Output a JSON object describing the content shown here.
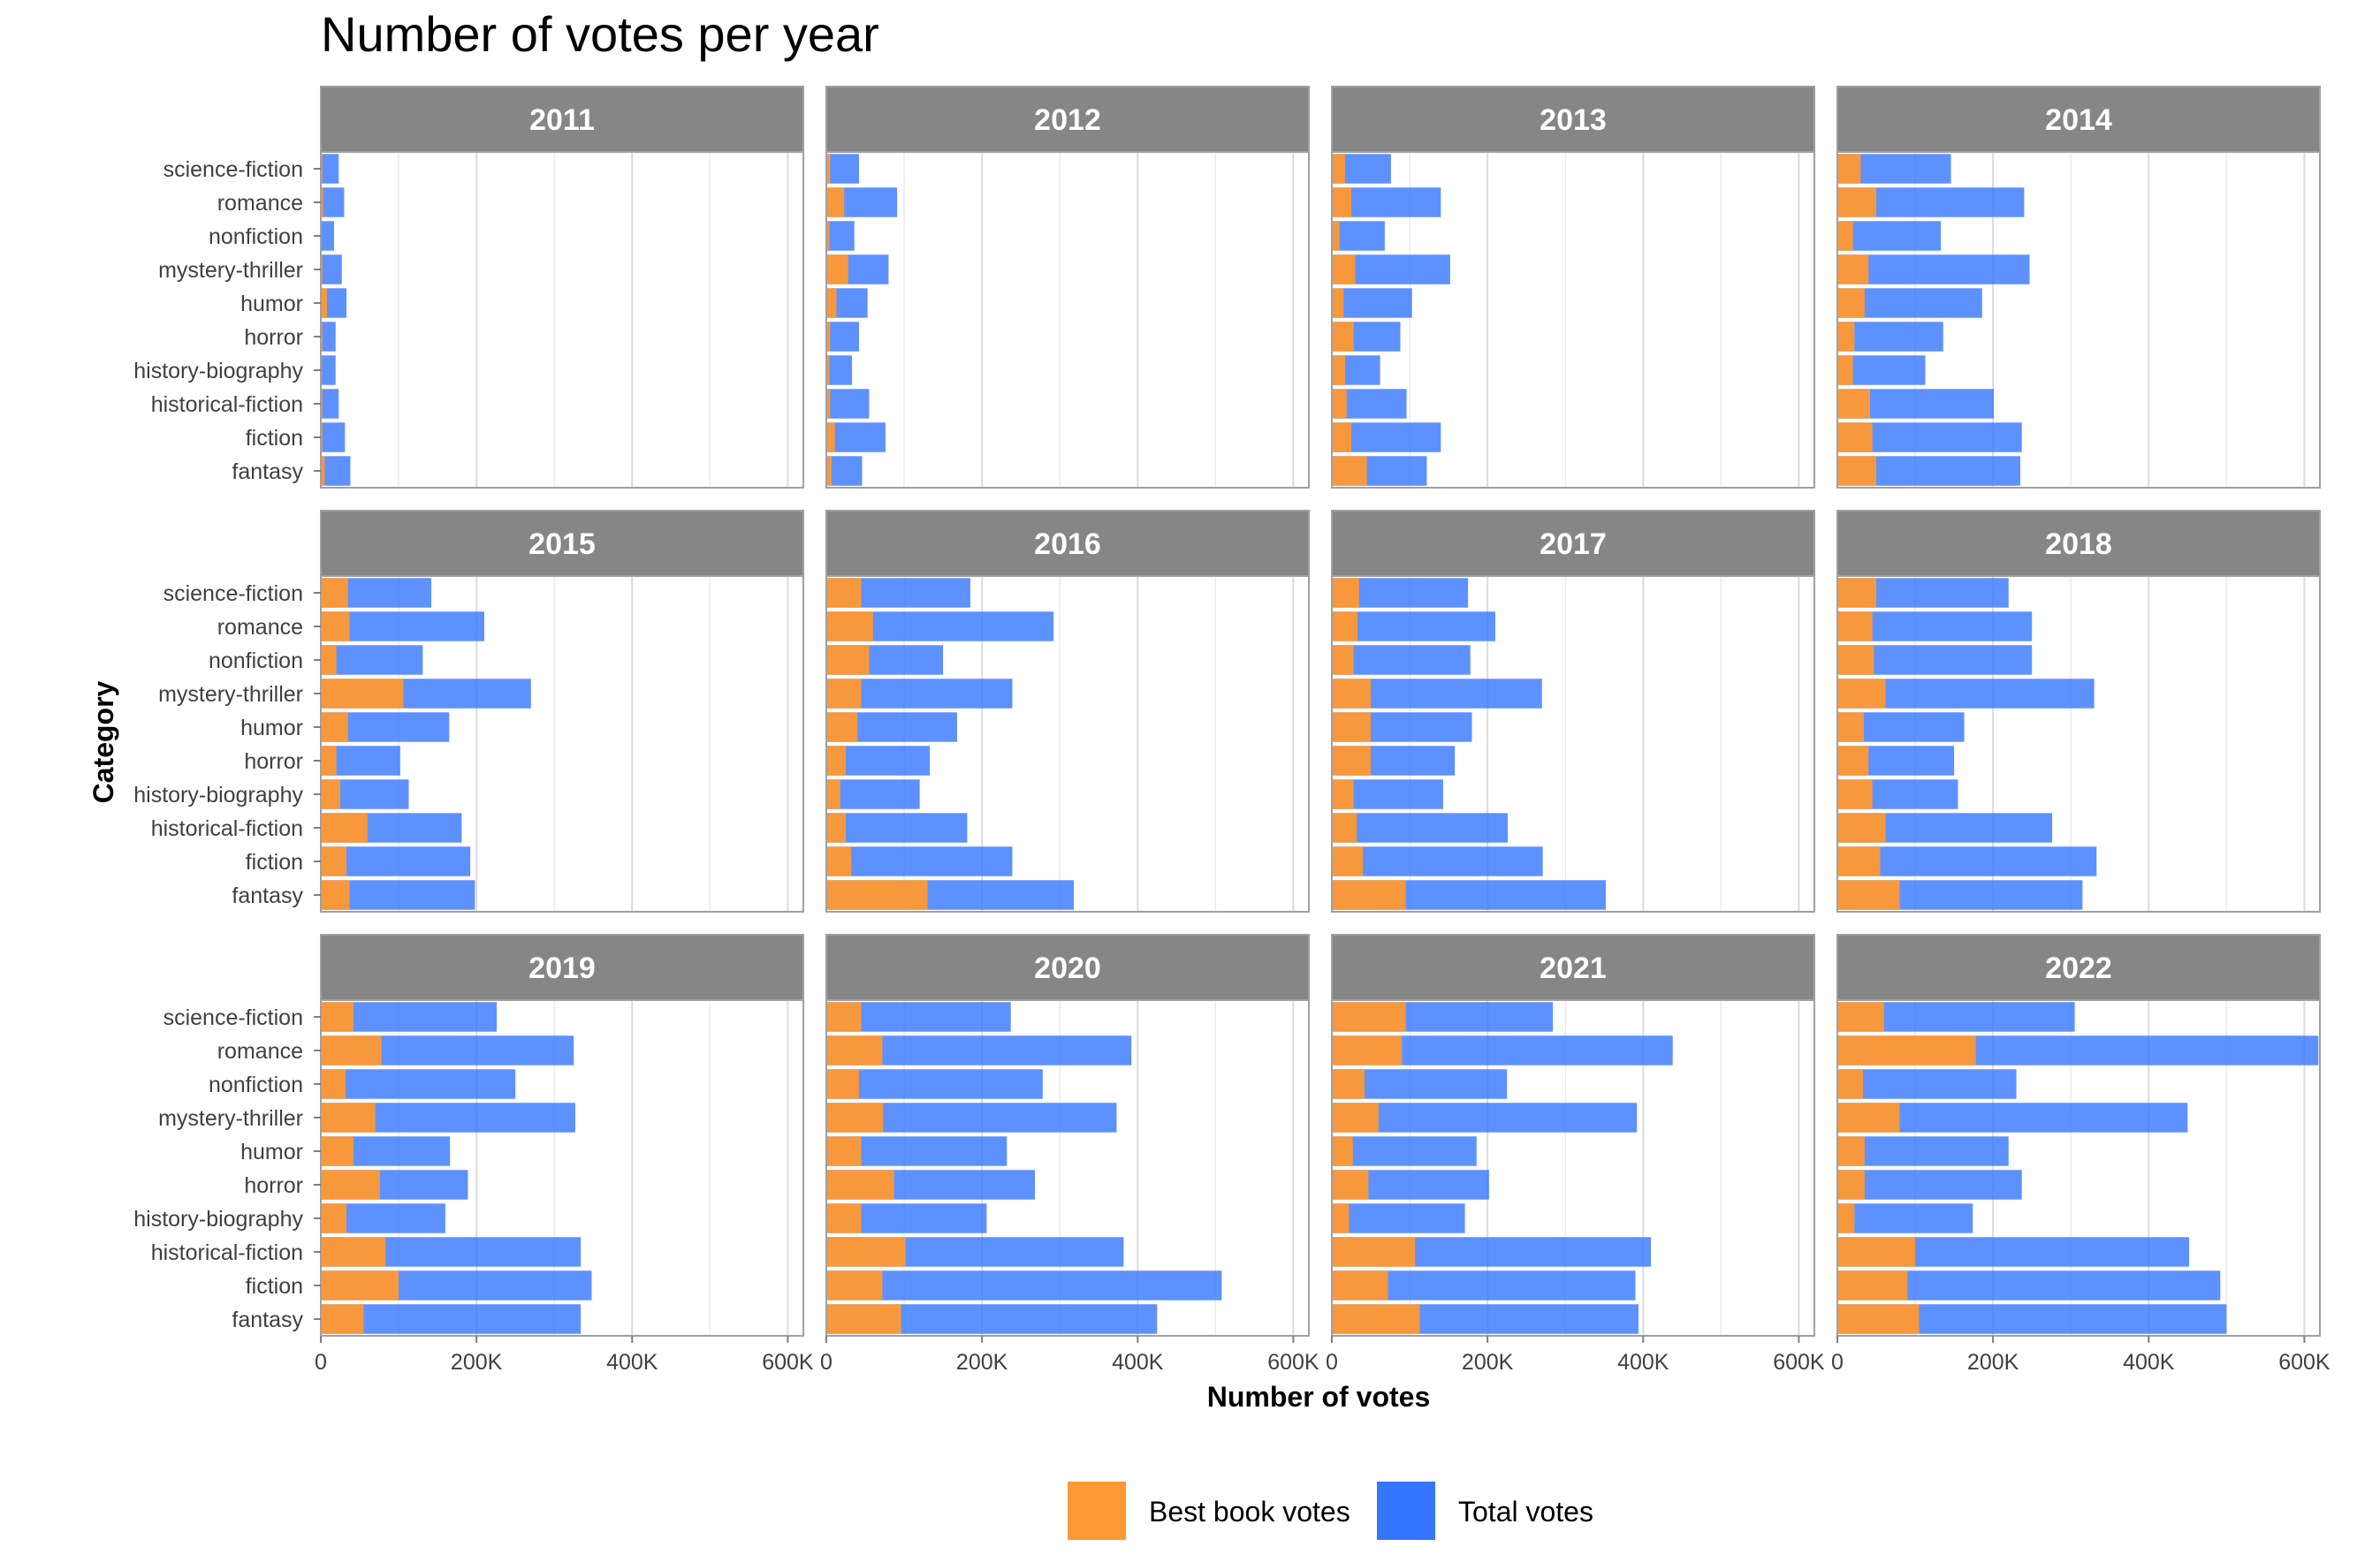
{
  "colors": {
    "best": "#FF9933",
    "total": "#3575FF",
    "strip_bg": "#868686",
    "strip_text": "#FFFFFF",
    "grid": "#DCDCDC",
    "panel_border": "#A0A0A0"
  },
  "chart_data": {
    "type": "bar",
    "orientation": "horizontal",
    "title": "Number of votes per year",
    "xlabel": "Number of votes",
    "ylabel": "Category",
    "xlim": [
      0,
      620000
    ],
    "x_ticks": [
      0,
      200000,
      400000,
      600000
    ],
    "x_tick_labels": [
      "0",
      "200K",
      "400K",
      "600K"
    ],
    "grid": true,
    "legend_position": "bottom",
    "legend": [
      {
        "key": "best",
        "label": "Best book votes"
      },
      {
        "key": "total",
        "label": "Total votes"
      }
    ],
    "categories": [
      "science-fiction",
      "romance",
      "nonfiction",
      "mystery-thriller",
      "humor",
      "horror",
      "history-biography",
      "historical-fiction",
      "fiction",
      "fantasy"
    ],
    "panels": [
      {
        "year": "2011",
        "best": [
          2000,
          3000,
          1000,
          2000,
          8000,
          2000,
          1500,
          2000,
          2000,
          5000
        ],
        "total": [
          23000,
          30000,
          17000,
          27000,
          33000,
          19000,
          19000,
          23000,
          31000,
          38000
        ]
      },
      {
        "year": "2012",
        "best": [
          5000,
          23000,
          4000,
          28000,
          13000,
          5000,
          4000,
          5000,
          11000,
          7000
        ],
        "total": [
          42000,
          91000,
          36000,
          80000,
          53000,
          42000,
          33000,
          55000,
          76000,
          46000
        ]
      },
      {
        "year": "2013",
        "best": [
          17000,
          25000,
          10000,
          30000,
          15000,
          28000,
          17000,
          19000,
          25000,
          45000
        ],
        "total": [
          76000,
          140000,
          68000,
          152000,
          103000,
          88000,
          62000,
          96000,
          140000,
          122000
        ]
      },
      {
        "year": "2014",
        "best": [
          30000,
          50000,
          20000,
          40000,
          35000,
          22000,
          20000,
          42000,
          45000,
          50000
        ],
        "total": [
          146000,
          240000,
          133000,
          247000,
          186000,
          136000,
          113000,
          201000,
          237000,
          235000
        ]
      },
      {
        "year": "2015",
        "best": [
          35000,
          37000,
          20000,
          106000,
          35000,
          20000,
          25000,
          60000,
          33000,
          37000
        ],
        "total": [
          142000,
          210000,
          131000,
          270000,
          165000,
          102000,
          113000,
          181000,
          192000,
          198000
        ]
      },
      {
        "year": "2016",
        "best": [
          45000,
          60000,
          55000,
          45000,
          40000,
          25000,
          18000,
          25000,
          32000,
          130000
        ],
        "total": [
          185000,
          292000,
          150000,
          239000,
          168000,
          133000,
          120000,
          181000,
          239000,
          318000
        ]
      },
      {
        "year": "2017",
        "best": [
          35000,
          33000,
          28000,
          50000,
          50000,
          50000,
          28000,
          32000,
          40000,
          95000
        ],
        "total": [
          175000,
          210000,
          178000,
          270000,
          180000,
          158000,
          143000,
          226000,
          271000,
          352000
        ]
      },
      {
        "year": "2018",
        "best": [
          50000,
          45000,
          47000,
          62000,
          34000,
          40000,
          45000,
          62000,
          55000,
          80000
        ],
        "total": [
          220000,
          250000,
          250000,
          330000,
          163000,
          150000,
          155000,
          276000,
          333000,
          315000
        ]
      },
      {
        "year": "2019",
        "best": [
          42000,
          78000,
          32000,
          70000,
          42000,
          76000,
          33000,
          83000,
          100000,
          55000
        ],
        "total": [
          226000,
          325000,
          250000,
          327000,
          166000,
          189000,
          160000,
          334000,
          348000,
          334000
        ]
      },
      {
        "year": "2020",
        "best": [
          45000,
          72000,
          42000,
          73000,
          45000,
          87000,
          45000,
          102000,
          72000,
          96000
        ],
        "total": [
          237000,
          392000,
          278000,
          373000,
          232000,
          268000,
          206000,
          382000,
          508000,
          425000
        ]
      },
      {
        "year": "2021",
        "best": [
          95000,
          90000,
          42000,
          60000,
          27000,
          47000,
          22000,
          107000,
          72000,
          113000
        ],
        "total": [
          284000,
          438000,
          225000,
          392000,
          186000,
          202000,
          171000,
          410000,
          390000,
          394000
        ]
      },
      {
        "year": "2022",
        "best": [
          60000,
          178000,
          33000,
          80000,
          35000,
          35000,
          22000,
          100000,
          90000,
          105000
        ],
        "total": [
          305000,
          618000,
          230000,
          450000,
          220000,
          237000,
          174000,
          452000,
          492000,
          500000
        ]
      }
    ]
  }
}
